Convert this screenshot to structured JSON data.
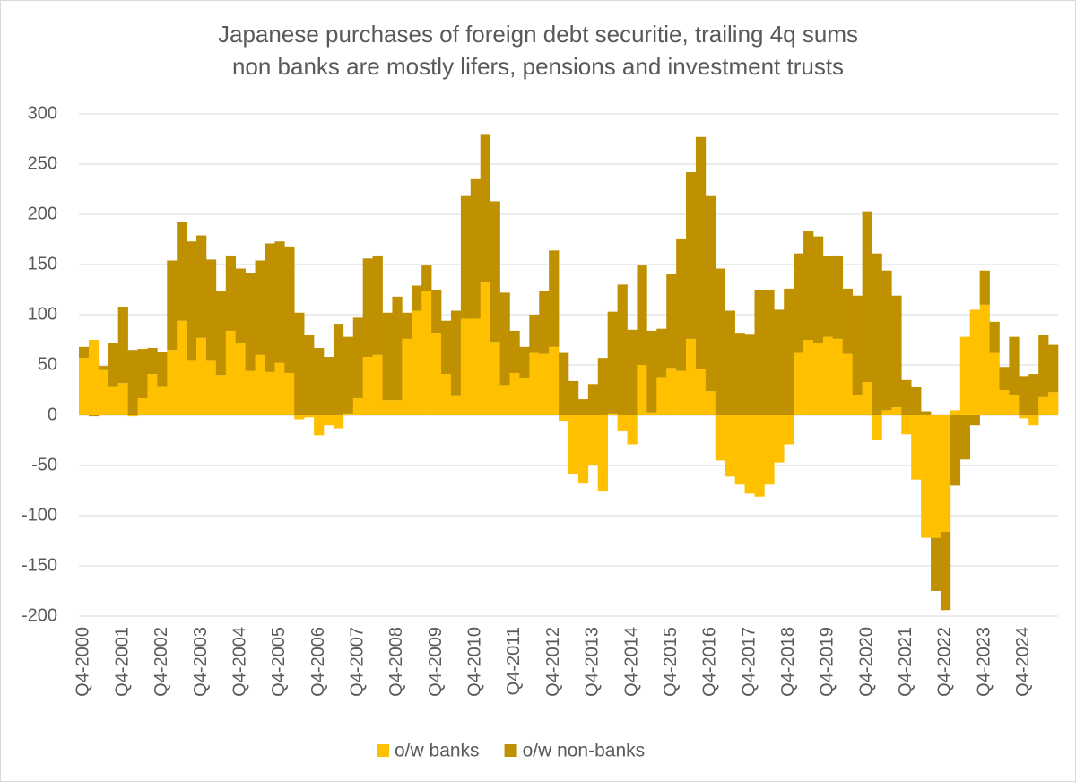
{
  "chart_data": {
    "type": "bar",
    "stacked": true,
    "title": "Japanese purchases of foreign debt securitie, trailing 4q sums",
    "subtitle": "non banks are mostly lifers, pensions and investment trusts",
    "categories": [
      "Q4-2000",
      null,
      null,
      null,
      "Q4-2001",
      null,
      null,
      null,
      "Q4-2002",
      null,
      null,
      null,
      "Q4-2003",
      null,
      null,
      null,
      "Q4-2004",
      null,
      null,
      null,
      "Q4-2005",
      null,
      null,
      null,
      "Q4-2006",
      null,
      null,
      null,
      "Q4-2007",
      null,
      null,
      null,
      "Q4-2008",
      null,
      null,
      null,
      "Q4-2009",
      null,
      null,
      null,
      "Q4-2010",
      null,
      null,
      null,
      "Q4-2011",
      null,
      null,
      null,
      "Q4-2012",
      null,
      null,
      null,
      "Q4-2013",
      null,
      null,
      null,
      "Q4-2014",
      null,
      null,
      null,
      "Q4-2015",
      null,
      null,
      null,
      "Q4-2016",
      null,
      null,
      null,
      "Q4-2017",
      null,
      null,
      null,
      "Q4-2018",
      null,
      null,
      null,
      "Q4-2019",
      null,
      null,
      null,
      "Q4-2020",
      null,
      null,
      null,
      "Q4-2021",
      null,
      null,
      null,
      "Q4-2022",
      null,
      null,
      null,
      "Q4-2023",
      null,
      null,
      null,
      "Q4-2024",
      null,
      null,
      null
    ],
    "series": [
      {
        "name": "o/w banks",
        "color": "#FFC000",
        "values": [
          57,
          75,
          45,
          29,
          32,
          -1,
          17,
          41,
          29,
          65,
          94,
          55,
          77,
          55,
          40,
          84,
          72,
          44,
          60,
          43,
          52,
          42,
          -4,
          -2,
          -20,
          -10,
          -13,
          1,
          17,
          58,
          60,
          15,
          15,
          76,
          104,
          124,
          82,
          41,
          19,
          96,
          96,
          132,
          73,
          30,
          42,
          37,
          62,
          61,
          68,
          -6,
          -58,
          -68,
          -50,
          -76,
          1,
          -16,
          -29,
          50,
          3,
          38,
          47,
          44,
          76,
          46,
          24,
          -45,
          -61,
          -69,
          -78,
          -81,
          -69,
          -47,
          -29,
          62,
          75,
          72,
          78,
          76,
          61,
          20,
          33,
          -25,
          5,
          8,
          -19,
          -64,
          -122,
          -122,
          -116,
          5,
          78,
          105,
          110,
          62,
          25,
          20,
          -3,
          -10,
          18,
          23
        ]
      },
      {
        "name": "o/w non-banks",
        "color": "#BF9000",
        "values": [
          11,
          -1,
          4,
          43,
          76,
          65,
          49,
          26,
          34,
          89,
          98,
          118,
          102,
          100,
          84,
          75,
          74,
          98,
          94,
          128,
          121,
          126,
          102,
          80,
          67,
          58,
          91,
          77,
          80,
          98,
          99,
          87,
          103,
          26,
          25,
          25,
          43,
          53,
          85,
          123,
          139,
          148,
          140,
          92,
          42,
          31,
          38,
          63,
          96,
          62,
          34,
          16,
          31,
          57,
          102,
          130,
          85,
          99,
          81,
          48,
          94,
          132,
          166,
          231,
          195,
          146,
          104,
          82,
          81,
          125,
          125,
          105,
          126,
          99,
          108,
          106,
          80,
          83,
          65,
          99,
          170,
          161,
          139,
          111,
          35,
          28,
          4,
          -53,
          -78,
          -70,
          -44,
          -10,
          34,
          31,
          23,
          58,
          39,
          41,
          62,
          47
        ]
      }
    ],
    "ylim": [
      -200,
      300
    ],
    "yticks": [
      -200,
      -150,
      -100,
      -50,
      0,
      50,
      100,
      150,
      200,
      250,
      300
    ],
    "grid": true,
    "legend": "bottom"
  }
}
